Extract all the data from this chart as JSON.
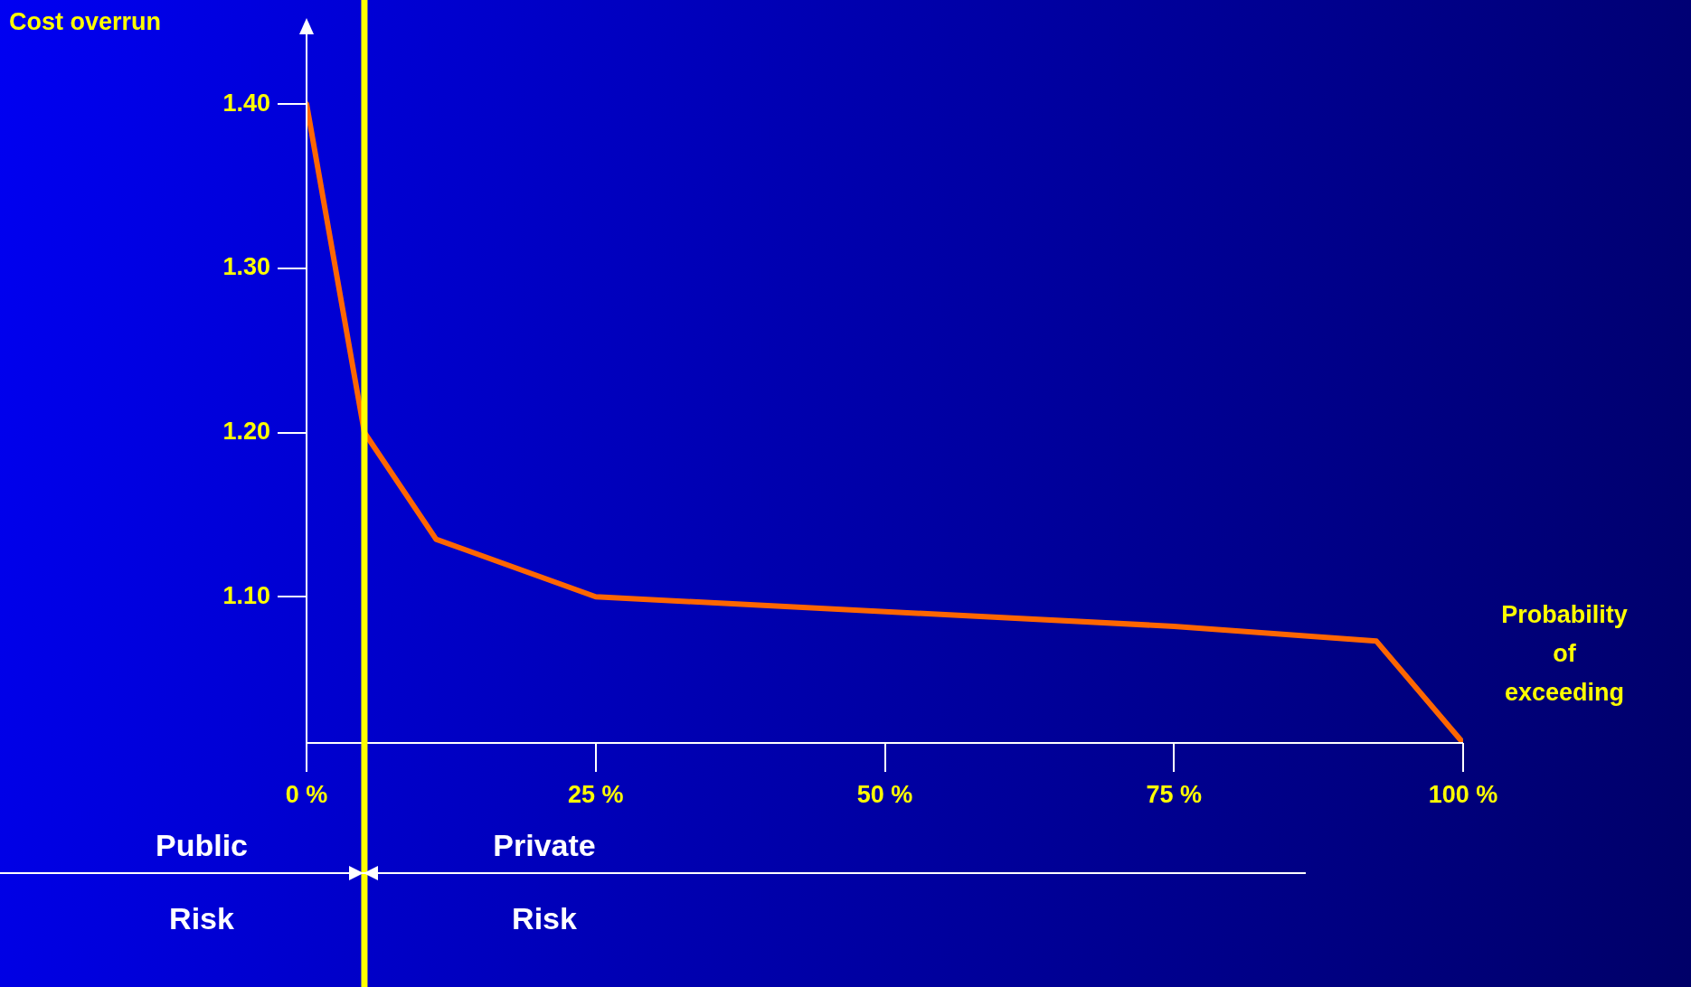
{
  "chart_data": {
    "type": "line",
    "xlabel": "Probability of exceeding",
    "ylabel": "Cost overrun",
    "x": [
      0,
      5,
      11.2,
      25,
      75,
      92.5,
      100
    ],
    "series": [
      {
        "color": "#ff6600",
        "values": [
          1.4,
          1.2,
          1.135,
          1.1,
          1.082,
          1.073,
          1.011
        ]
      }
    ],
    "xlim": [
      0,
      100
    ],
    "ylim": [
      1.011,
      1.45
    ],
    "xticks": [
      {
        "value": 0,
        "label": "0 %"
      },
      {
        "value": 25,
        "label": "25 %"
      },
      {
        "value": 50,
        "label": "50 %"
      },
      {
        "value": 75,
        "label": "75 %"
      },
      {
        "value": 100,
        "label": "100 %"
      }
    ],
    "yticks": [
      {
        "value": 1.1,
        "label": "1.10"
      },
      {
        "value": 1.2,
        "label": "1.20"
      },
      {
        "value": 1.3,
        "label": "1.30"
      },
      {
        "value": 1.4,
        "label": "1.40"
      }
    ],
    "ref_lines": [
      {
        "axis": "x",
        "value": 5,
        "color": "#ffff00"
      }
    ],
    "annotations": [
      "Public",
      "Risk",
      "Private",
      "Risk"
    ],
    "grid": false,
    "legend": false,
    "marker": "none",
    "line_style": "solid"
  }
}
